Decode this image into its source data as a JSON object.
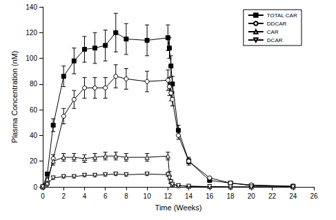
{
  "chart_data": {
    "type": "line",
    "x_label": "Time (Weeks)",
    "y_label": "Plasma Concentration (nM)",
    "x": [
      0,
      0.43,
      1,
      2,
      3,
      4,
      5,
      6,
      7,
      8,
      10,
      12,
      12.14,
      12.29,
      12.43,
      13,
      14,
      16,
      18,
      20,
      24
    ],
    "series": [
      {
        "name": "TOTAL CAR",
        "color": "#000000",
        "marker": "filled_square",
        "values": [
          0,
          10,
          48,
          86,
          98,
          107,
          108,
          110,
          120,
          115,
          114,
          116,
          108,
          94,
          80,
          44,
          20,
          5,
          3,
          1,
          0.5
        ],
        "errors": [
          0,
          1,
          5,
          8,
          10,
          10,
          12,
          12,
          15,
          12,
          12,
          10,
          8,
          8,
          6,
          4,
          3,
          1,
          1,
          0.5,
          0.3
        ]
      },
      {
        "name": "DDCAR",
        "color": "#000000",
        "marker": "open_circle",
        "values": [
          0,
          2,
          22,
          55,
          68,
          77,
          77,
          77,
          86,
          84,
          82,
          83,
          78,
          73,
          68,
          40,
          20,
          7,
          3,
          1.5,
          0.5
        ],
        "errors": [
          0,
          0.5,
          3,
          6,
          7,
          8,
          8,
          8,
          9,
          8,
          8,
          8,
          7,
          6,
          5,
          3,
          2,
          1,
          0.5,
          0.3,
          0.2
        ]
      },
      {
        "name": "CAR",
        "color": "#000000",
        "marker": "open_triangle",
        "values": [
          0,
          6,
          20,
          23,
          23,
          22,
          23,
          24,
          24,
          23,
          23,
          24,
          10,
          4,
          2,
          1,
          0.5,
          0.2,
          0,
          0,
          0
        ],
        "errors": [
          0,
          1,
          3,
          3,
          3,
          3,
          3,
          3,
          3,
          3,
          3,
          3,
          2,
          1,
          0.5,
          0.3,
          0.2,
          0.1,
          0,
          0,
          0
        ]
      },
      {
        "name": "DCAR",
        "color": "#000000",
        "marker": "open_triangle_down",
        "values": [
          0,
          2,
          7,
          8,
          8,
          9,
          9,
          9.5,
          10,
          9.5,
          10,
          9.5,
          7,
          4,
          2,
          1,
          0.5,
          0.2,
          0,
          0,
          0
        ],
        "errors": [
          0,
          0.3,
          1,
          1,
          1,
          1,
          1,
          1,
          1,
          1,
          1,
          1,
          1,
          0.5,
          0.3,
          0.2,
          0.1,
          0,
          0,
          0,
          0
        ]
      }
    ],
    "xlim": [
      0,
      26
    ],
    "xticks": [
      0,
      2,
      4,
      6,
      8,
      10,
      12,
      14,
      16,
      18,
      20,
      22,
      24,
      26
    ],
    "ylim": [
      0,
      140
    ],
    "yticks": [
      0,
      20,
      40,
      60,
      80,
      100,
      120,
      140
    ],
    "grid": false,
    "legend": "top-right"
  }
}
